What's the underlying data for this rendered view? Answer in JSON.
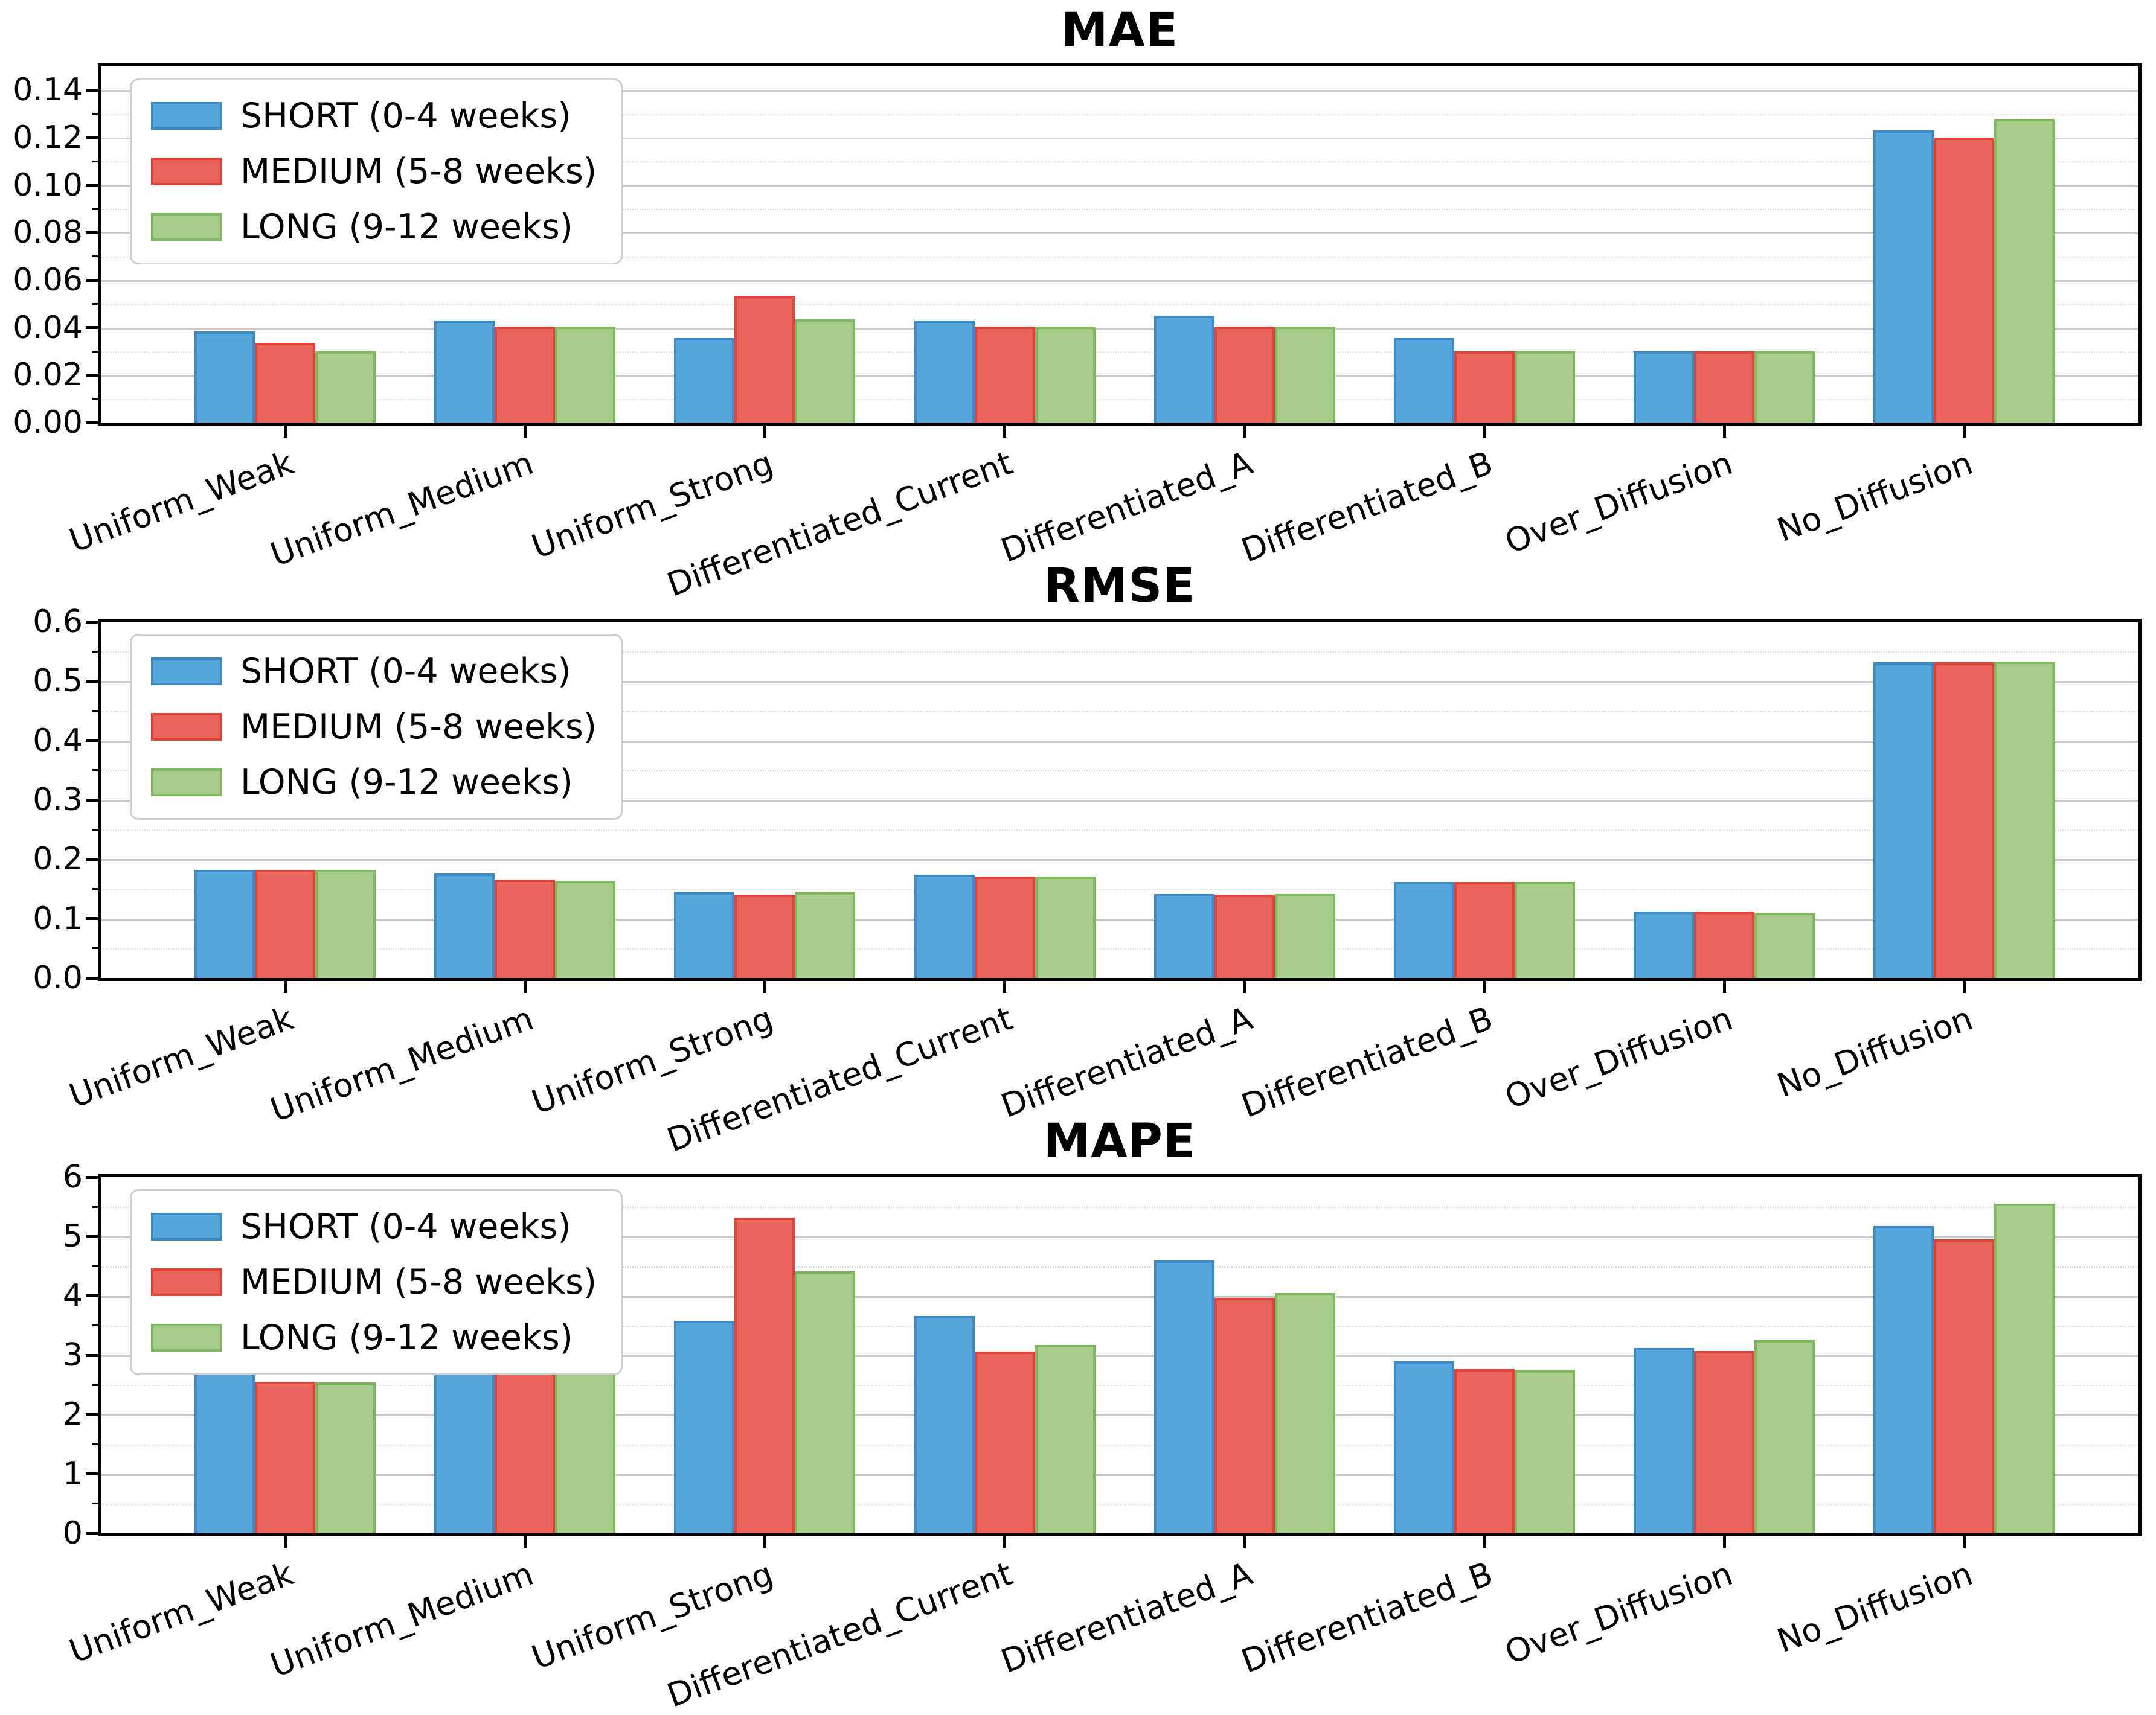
{
  "figure": {
    "background": "#ffffff"
  },
  "series_meta": [
    {
      "name": "SHORT (0-4 weeks)",
      "fill": "#57A6DB",
      "edge": "#3A8BC8"
    },
    {
      "name": "MEDIUM (5-8 weeks)",
      "fill": "#E9655C",
      "edge": "#DE443B"
    },
    {
      "name": "LONG (9-12 weeks)",
      "fill": "#A8CD8B",
      "edge": "#7FB95D"
    }
  ],
  "chart_data": [
    {
      "type": "bar",
      "title": "MAE",
      "categories": [
        "Uniform_Weak",
        "Uniform_Medium",
        "Uniform_Strong",
        "Differentiated_Current",
        "Differentiated_A",
        "Differentiated_B",
        "Over_Diffusion",
        "No_Diffusion"
      ],
      "series": [
        {
          "name": "SHORT (0-4 weeks)",
          "values": [
            0.0385,
            0.043,
            0.0355,
            0.043,
            0.045,
            0.0355,
            0.03,
            0.123
          ]
        },
        {
          "name": "MEDIUM (5-8 weeks)",
          "values": [
            0.0335,
            0.0405,
            0.0535,
            0.0405,
            0.0405,
            0.03,
            0.03,
            0.12
          ]
        },
        {
          "name": "LONG (9-12 weeks)",
          "values": [
            0.03,
            0.0405,
            0.0435,
            0.0405,
            0.0405,
            0.03,
            0.03,
            0.128
          ]
        }
      ],
      "ylim": [
        0,
        0.15
      ],
      "yticks": [
        {
          "v": 0.0,
          "label": "0.00"
        },
        {
          "v": 0.02,
          "label": "0.02"
        },
        {
          "v": 0.04,
          "label": "0.04"
        },
        {
          "v": 0.06,
          "label": "0.06"
        },
        {
          "v": 0.08,
          "label": "0.08"
        },
        {
          "v": 0.1,
          "label": "0.10"
        },
        {
          "v": 0.12,
          "label": "0.12"
        },
        {
          "v": 0.14,
          "label": "0.14"
        }
      ],
      "minor_step": 0.01,
      "grid": true,
      "legend_position": "upper left"
    },
    {
      "type": "bar",
      "title": "RMSE",
      "categories": [
        "Uniform_Weak",
        "Uniform_Medium",
        "Uniform_Strong",
        "Differentiated_Current",
        "Differentiated_A",
        "Differentiated_B",
        "Over_Diffusion",
        "No_Diffusion"
      ],
      "series": [
        {
          "name": "SHORT (0-4 weeks)",
          "values": [
            0.182,
            0.176,
            0.144,
            0.174,
            0.141,
            0.162,
            0.112,
            0.532
          ]
        },
        {
          "name": "MEDIUM (5-8 weeks)",
          "values": [
            0.182,
            0.166,
            0.14,
            0.171,
            0.14,
            0.162,
            0.112,
            0.532
          ]
        },
        {
          "name": "LONG (9-12 weeks)",
          "values": [
            0.182,
            0.164,
            0.144,
            0.171,
            0.141,
            0.162,
            0.11,
            0.533
          ]
        }
      ],
      "ylim": [
        0,
        0.6
      ],
      "yticks": [
        {
          "v": 0.0,
          "label": "0.0"
        },
        {
          "v": 0.1,
          "label": "0.1"
        },
        {
          "v": 0.2,
          "label": "0.2"
        },
        {
          "v": 0.3,
          "label": "0.3"
        },
        {
          "v": 0.4,
          "label": "0.4"
        },
        {
          "v": 0.5,
          "label": "0.5"
        },
        {
          "v": 0.6,
          "label": "0.6"
        }
      ],
      "minor_step": 0.05,
      "grid": true,
      "legend_position": "upper left"
    },
    {
      "type": "bar",
      "title": "MAPE",
      "categories": [
        "Uniform_Weak",
        "Uniform_Medium",
        "Uniform_Strong",
        "Differentiated_Current",
        "Differentiated_A",
        "Differentiated_B",
        "Over_Diffusion",
        "No_Diffusion"
      ],
      "series": [
        {
          "name": "SHORT (0-4 weeks)",
          "values": [
            2.72,
            3.33,
            3.58,
            3.66,
            4.6,
            2.9,
            3.12,
            5.18
          ]
        },
        {
          "name": "MEDIUM (5-8 weeks)",
          "values": [
            2.55,
            3.04,
            5.32,
            3.06,
            3.97,
            2.77,
            3.07,
            4.95
          ]
        },
        {
          "name": "LONG (9-12 weeks)",
          "values": [
            2.54,
            2.97,
            4.41,
            3.17,
            4.05,
            2.75,
            3.25,
            5.55
          ]
        }
      ],
      "ylim": [
        0,
        6
      ],
      "yticks": [
        {
          "v": 0,
          "label": "0"
        },
        {
          "v": 1,
          "label": "1"
        },
        {
          "v": 2,
          "label": "2"
        },
        {
          "v": 3,
          "label": "3"
        },
        {
          "v": 4,
          "label": "4"
        },
        {
          "v": 5,
          "label": "5"
        },
        {
          "v": 6,
          "label": "6"
        }
      ],
      "minor_step": 0.5,
      "grid": true,
      "legend_position": "upper left"
    }
  ],
  "style": {
    "major_grid_color": "#c9c9c9",
    "minor_grid_color": "#e0e0e0",
    "axis_color": "#000000",
    "legend_border_color": "#cfcfcf"
  }
}
